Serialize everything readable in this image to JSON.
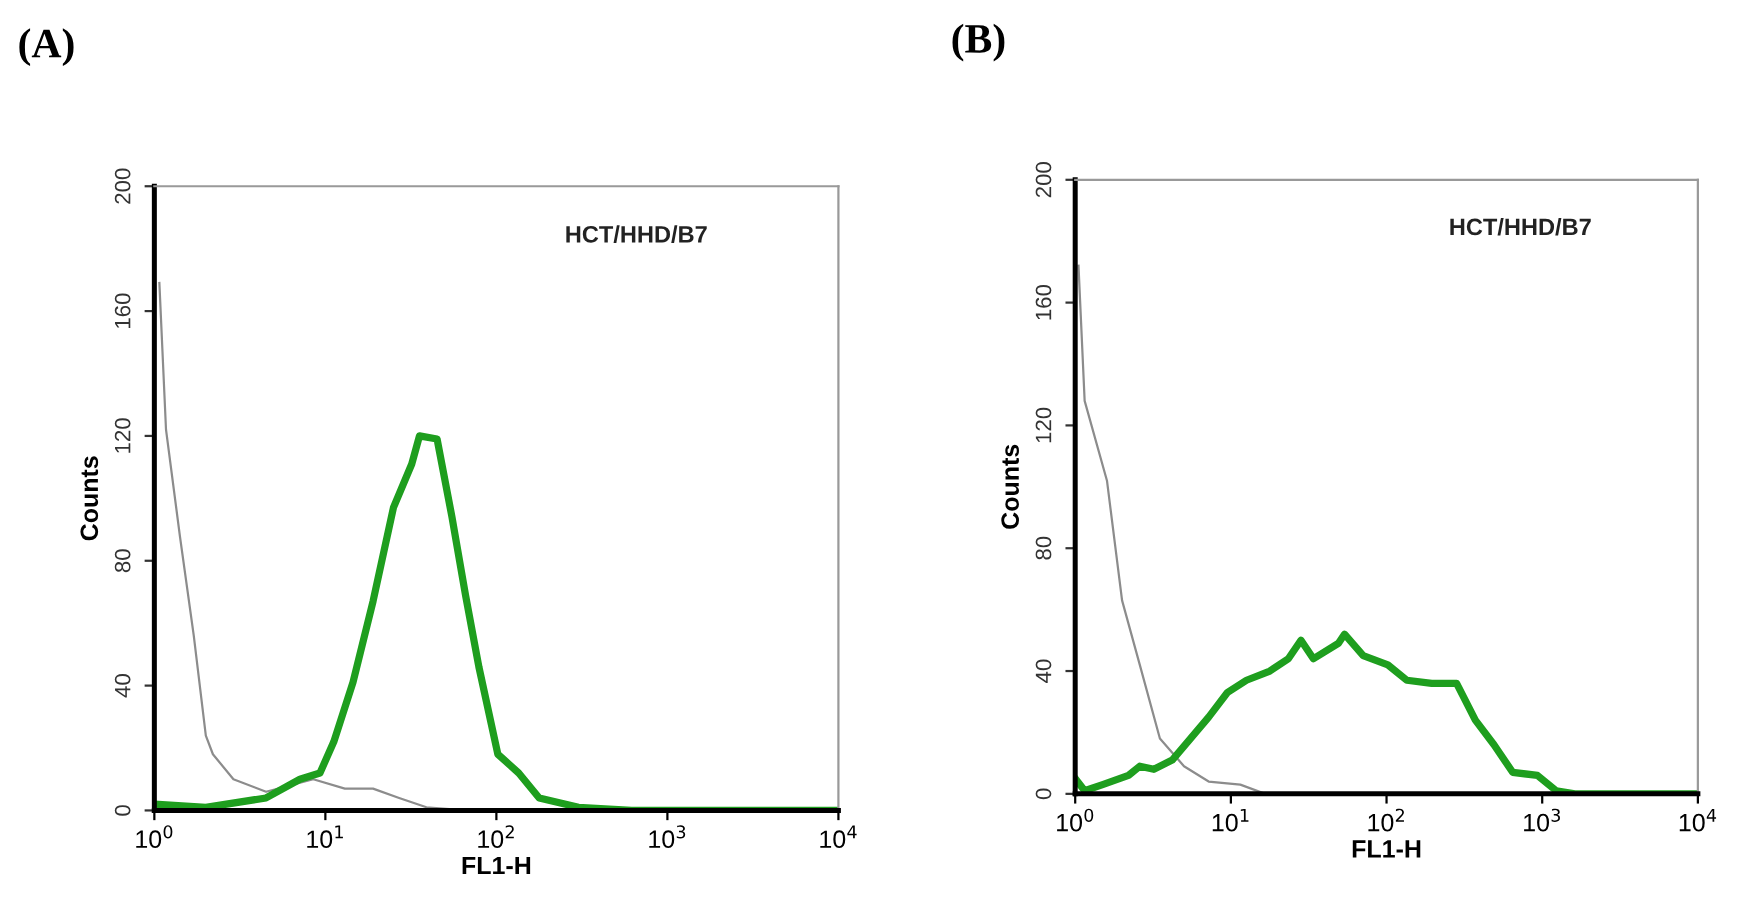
{
  "chart_data": [
    {
      "type": "line",
      "title": "(A)",
      "xlabel": "FL1-H",
      "ylabel": "Counts",
      "log": "x",
      "grid": false,
      "legend": false,
      "xlim": [
        1,
        10000
      ],
      "ylim": [
        0,
        200
      ],
      "xticks": [
        {
          "value": 1,
          "label": "10$^{0}$"
        },
        {
          "value": 10,
          "label": "10$^{1}$"
        },
        {
          "value": 100,
          "label": "10$^{2}$"
        },
        {
          "value": 1000,
          "label": "10$^{3}$"
        },
        {
          "value": 10000,
          "label": "10$^{4}$"
        }
      ],
      "yticks": [
        0,
        40,
        80,
        120,
        160,
        200
      ],
      "annotations": [
        "HCT/HHD/B7"
      ],
      "series": [
        {
          "color": "#8c8c8c",
          "x": [
            1.07,
            1.17,
            1.41,
            1.7,
            2.0,
            2.2,
            2.9,
            4.5,
            8.5,
            13,
            19,
            27,
            39,
            66,
            10000
          ],
          "values": [
            169,
            122,
            88,
            56,
            24,
            18,
            10,
            6,
            10,
            7,
            7,
            4,
            1,
            0,
            0
          ]
        },
        {
          "color": "#1e9e1e",
          "x": [
            1,
            2,
            4.5,
            7.1,
            9.3,
            11.2,
            14.5,
            19,
            25,
            32,
            35.5,
            45,
            55,
            66,
            79,
            102,
            135,
            178,
            302,
            617,
            10000
          ],
          "values": [
            2,
            1,
            4,
            10,
            12,
            22,
            41,
            67,
            97,
            111,
            120,
            119,
            94,
            69,
            46,
            18,
            12,
            4,
            1,
            0,
            0
          ]
        }
      ]
    },
    {
      "type": "line",
      "title": "(B)",
      "xlabel": "FL1-H",
      "ylabel": "Counts",
      "log": "x",
      "grid": false,
      "legend": false,
      "xlim": [
        1,
        10000
      ],
      "ylim": [
        0,
        200
      ],
      "xticks": [
        {
          "value": 1,
          "label": "10$^{0}$"
        },
        {
          "value": 10,
          "label": "10$^{1}$"
        },
        {
          "value": 100,
          "label": "10$^{2}$"
        },
        {
          "value": 1000,
          "label": "10$^{3}$"
        },
        {
          "value": 10000,
          "label": "10$^{4}$"
        }
      ],
      "yticks": [
        0,
        40,
        80,
        120,
        160,
        200
      ],
      "annotations": [
        "HCT/HHD/B7"
      ],
      "series": [
        {
          "color": "#8c8c8c",
          "x": [
            1.05,
            1.15,
            1.6,
            2.0,
            2.6,
            3.5,
            5.0,
            7.2,
            11.5,
            16.6,
            10000
          ],
          "values": [
            172,
            128,
            102,
            63,
            42,
            18,
            9,
            4,
            3,
            0,
            0
          ]
        },
        {
          "color": "#1e9e1e",
          "x": [
            1,
            1.15,
            1.5,
            2.2,
            2.6,
            3.2,
            4.2,
            5.5,
            7.2,
            9.5,
            12.6,
            17.8,
            23.4,
            28.2,
            33.9,
            49,
            53.7,
            70.8,
            102,
            135,
            195,
            282,
            372,
            490,
            646,
            933,
            1230,
            1620,
            10000
          ],
          "values": [
            5,
            1,
            3,
            6,
            9,
            8,
            11,
            18,
            25,
            33,
            37,
            40,
            44,
            50,
            44,
            49,
            52,
            45,
            42,
            37,
            36,
            36,
            24,
            16,
            7,
            6,
            1,
            0,
            0
          ]
        }
      ]
    }
  ]
}
